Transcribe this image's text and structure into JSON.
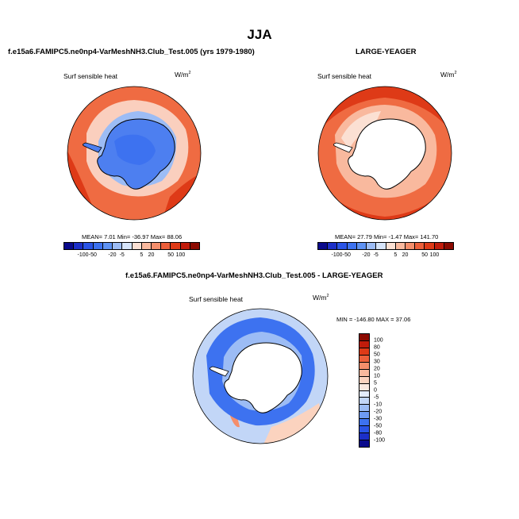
{
  "page": {
    "season_title": "JJA"
  },
  "panels": {
    "test": {
      "title": "f.e15a6.FAMIPC5.ne0np4-VarMeshNH3.Club_Test.005 (yrs 1979-1980)",
      "variable": "Surf sensible heat",
      "units": "W/m",
      "units_exp": "2",
      "stats": "MEAN=   7.01  Min= -36.97  Max=  88.06"
    },
    "reference": {
      "title": "LARGE-YEAGER",
      "variable": "Surf sensible heat",
      "units": "W/m",
      "units_exp": "2",
      "stats": "MEAN=  27.79  Min=  -1.47  Max= 141.70"
    },
    "difference": {
      "title": "f.e15a6.FAMIPC5.ne0np4-VarMeshNH3.Club_Test.005 - LARGE-YEAGER",
      "variable": "Surf sensible heat",
      "units": "W/m",
      "units_exp": "2",
      "stats": "MIN = -146.80 MAX =  37.06"
    }
  },
  "colorbar_top": {
    "ticks": [
      "-100",
      "-50",
      "-20",
      "-5",
      "5",
      "20",
      "50",
      "100"
    ],
    "colors": [
      "#0a0a8c",
      "#1c2fc8",
      "#2a54e6",
      "#3d72f0",
      "#5e92f3",
      "#9cbcf5",
      "#d6e4f9",
      "#fbe0d3",
      "#f9b99e",
      "#f48e6b",
      "#ec5f3a",
      "#de3a17",
      "#c11c0b",
      "#8c0a00"
    ]
  },
  "colorbar_diff": {
    "ticks": [
      "100",
      "80",
      "50",
      "30",
      "20",
      "10",
      "5",
      "0",
      "-5",
      "-10",
      "-20",
      "-30",
      "-50",
      "-80",
      "-100"
    ],
    "colors": [
      "#8c0a00",
      "#c11c0b",
      "#de3a17",
      "#ec5f3a",
      "#f48e6b",
      "#f9b99e",
      "#fbd3bf",
      "#fbe9e0",
      "#e4ecfa",
      "#c2d6f7",
      "#9cbcf5",
      "#6e9af2",
      "#3d72f0",
      "#2a54e6",
      "#1c2fc8",
      "#0a0a8c"
    ]
  },
  "colors": {
    "ocean_warm": "#ef6b42",
    "ocean_hot": "#de3a17",
    "ocean_pale": "#fbe0d3",
    "land_cold": "#4d7ff0",
    "land_blue": "#3d72f0",
    "land_white": "#ffffff",
    "diff_blue": "#3d72f0",
    "diff_light": "#c2d6f7",
    "diff_pink": "#fbd3bf"
  }
}
